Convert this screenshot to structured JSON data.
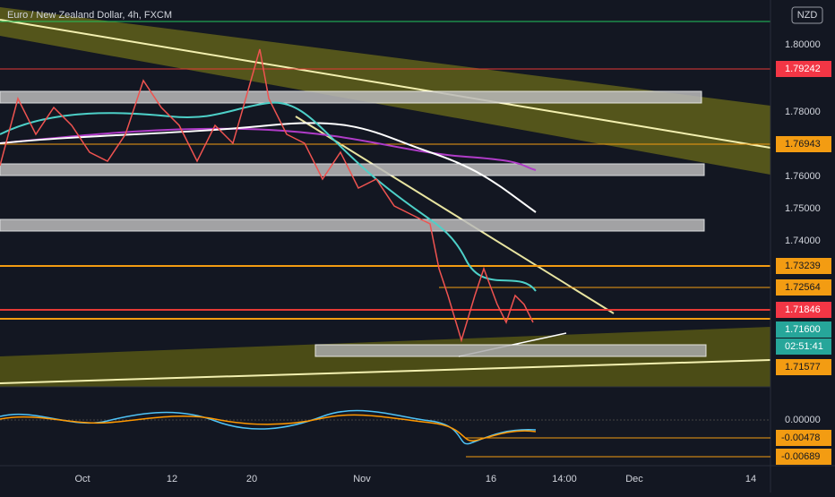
{
  "header": {
    "title": "Euro / New Zealand Dollar, 4h, FXCM",
    "currency_button": "NZD"
  },
  "price_axis": {
    "ticks": [
      "1.80000",
      "1.78000",
      "1.76000",
      "1.75000",
      "1.74000"
    ]
  },
  "price_tags": [
    "1.79242",
    "1.76943",
    "1.73239",
    "1.72564",
    "1.71846",
    "1.71600",
    "02:51:41",
    "1.71577"
  ],
  "oscillator_axis": {
    "ticks": [
      "0.00000",
      "-0.00478",
      "-0.00689"
    ]
  },
  "time_axis": {
    "labels": [
      "Oct",
      "12",
      "20",
      "Nov",
      "16",
      "14:00",
      "Dec",
      "14"
    ]
  }
}
